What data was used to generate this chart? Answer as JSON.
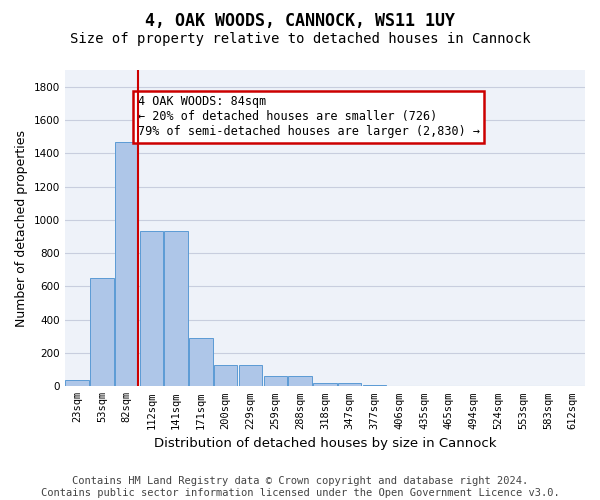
{
  "title_line1": "4, OAK WOODS, CANNOCK, WS11 1UY",
  "title_line2": "Size of property relative to detached houses in Cannock",
  "xlabel": "Distribution of detached houses by size in Cannock",
  "ylabel": "Number of detached properties",
  "bar_values": [
    40,
    650,
    1470,
    935,
    935,
    290,
    125,
    125,
    62,
    62,
    22,
    22,
    10,
    0,
    0,
    0,
    0,
    0,
    0,
    0,
    0
  ],
  "categories": [
    "23sqm",
    "53sqm",
    "82sqm",
    "112sqm",
    "141sqm",
    "171sqm",
    "200sqm",
    "229sqm",
    "259sqm",
    "288sqm",
    "318sqm",
    "347sqm",
    "377sqm",
    "406sqm",
    "435sqm",
    "465sqm",
    "494sqm",
    "524sqm",
    "553sqm",
    "583sqm",
    "612sqm"
  ],
  "bar_color": "#aec6e8",
  "bar_edge_color": "#5b9bd5",
  "vline_x_index": 2,
  "vline_color": "#cc0000",
  "annotation_text": "4 OAK WOODS: 84sqm\n← 20% of detached houses are smaller (726)\n79% of semi-detached houses are larger (2,830) →",
  "annotation_box_edgecolor": "#cc0000",
  "ylim": [
    0,
    1900
  ],
  "yticks": [
    0,
    200,
    400,
    600,
    800,
    1000,
    1200,
    1400,
    1600,
    1800
  ],
  "footer_line1": "Contains HM Land Registry data © Crown copyright and database right 2024.",
  "footer_line2": "Contains public sector information licensed under the Open Government Licence v3.0.",
  "background_color": "#eef2f9",
  "grid_color": "#c8cede",
  "title1_fontsize": 12,
  "title2_fontsize": 10,
  "xlabel_fontsize": 9.5,
  "ylabel_fontsize": 9,
  "footer_fontsize": 7.5,
  "tick_fontsize": 7.5,
  "annot_fontsize": 8.5
}
